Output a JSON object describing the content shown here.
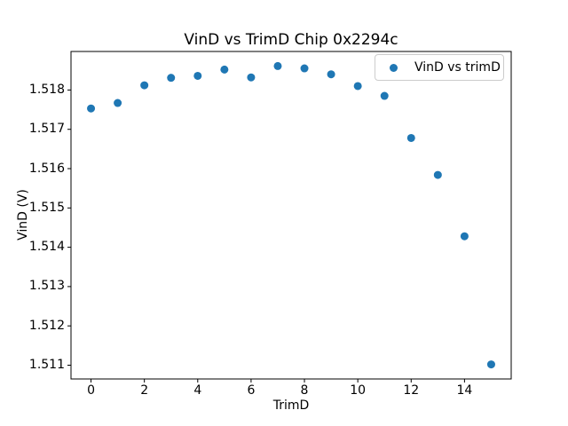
{
  "chart_data": {
    "type": "scatter",
    "title": "VinD vs TrimD Chip 0x2294c",
    "xlabel": "TrimD",
    "ylabel": "VinD (V)",
    "series": [
      {
        "name": "VinD vs trimD",
        "color": "#1f77b4",
        "x": [
          0,
          1,
          2,
          3,
          4,
          5,
          6,
          7,
          8,
          9,
          10,
          11,
          12,
          13,
          14,
          15
        ],
        "y": [
          1.51753,
          1.51767,
          1.51812,
          1.51831,
          1.51836,
          1.51852,
          1.51832,
          1.51861,
          1.51855,
          1.5184,
          1.5181,
          1.51785,
          1.51678,
          1.51584,
          1.51428,
          1.51102
        ]
      }
    ],
    "xlim": [
      -0.75,
      15.75
    ],
    "ylim": [
      1.51065,
      1.51898
    ],
    "x_ticks": [
      0,
      2,
      4,
      6,
      8,
      10,
      12,
      14
    ],
    "x_tick_labels": [
      "0",
      "2",
      "4",
      "6",
      "8",
      "10",
      "12",
      "14"
    ],
    "y_ticks": [
      1.511,
      1.512,
      1.513,
      1.514,
      1.515,
      1.516,
      1.517,
      1.518
    ],
    "y_tick_labels": [
      "1.511",
      "1.512",
      "1.513",
      "1.514",
      "1.515",
      "1.516",
      "1.517",
      "1.518"
    ],
    "legend": {
      "label": "VinD vs trimD",
      "position": "upper right"
    },
    "grid": false,
    "colors": {
      "marker": "#1f77b4",
      "spine": "#000000",
      "legend_border": "#cccccc",
      "background": "#ffffff"
    }
  }
}
